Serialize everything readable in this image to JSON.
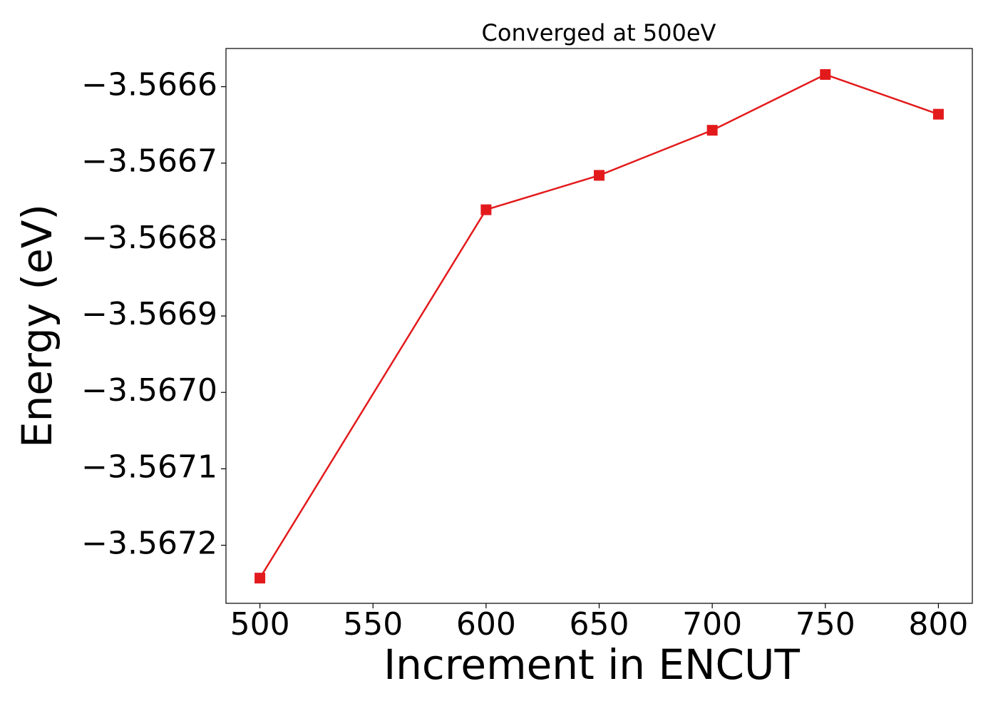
{
  "chart_data": {
    "type": "line",
    "title": "Converged at 500eV",
    "x_label": "Increment in ENCUT",
    "y_label": "Energy (eV)",
    "x": [
      500,
      600,
      650,
      700,
      750,
      800
    ],
    "series": [
      {
        "color": "#e31a1c",
        "marker": "square",
        "values": [
          -3.567243,
          -3.566761,
          -3.566716,
          -3.566657,
          -3.566584,
          -3.566636
        ]
      }
    ],
    "xlim": [
      485,
      815
    ],
    "xticks": [
      500,
      550,
      600,
      650,
      700,
      750,
      800
    ],
    "ylim": [
      -3.567276,
      -3.56655
    ],
    "yticks": [
      {
        "value": -3.5672,
        "label": "−3.5672"
      },
      {
        "value": -3.5671,
        "label": "−3.5671"
      },
      {
        "value": -3.567,
        "label": "−3.5670"
      },
      {
        "value": -3.5669,
        "label": "−3.5669"
      },
      {
        "value": -3.5668,
        "label": "−3.5668"
      },
      {
        "value": -3.5667,
        "label": "−3.5667"
      },
      {
        "value": -3.5666,
        "label": "−3.5666"
      }
    ],
    "grid": false
  }
}
